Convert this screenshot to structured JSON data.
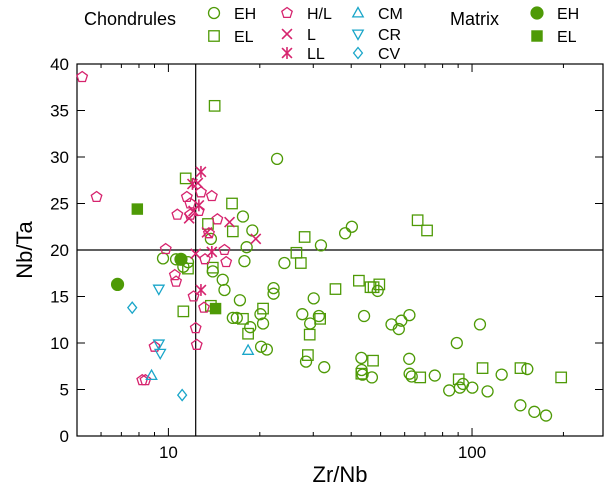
{
  "chart_data": {
    "type": "scatter",
    "xlabel": "Zr/Nb",
    "ylabel": "Nb/Ta",
    "xscale": "log",
    "xlim": [
      5,
      270
    ],
    "ylim": [
      0,
      40
    ],
    "x_ticks": [
      10,
      100
    ],
    "y_ticks": [
      0,
      5,
      10,
      15,
      20,
      25,
      30,
      35,
      40
    ],
    "reference_lines": {
      "x": 12.3,
      "y": 20
    },
    "legend": {
      "placement": "top",
      "group_chondrules": "Chondrules",
      "group_matrix": "Matrix"
    },
    "colors": {
      "green": "#4e9a06",
      "magenta": "#d6246e",
      "cyan": "#1aa6c9"
    },
    "series": [
      {
        "name": "EH",
        "group": "Chondrules",
        "marker": "circle-open",
        "color": "#4e9a06",
        "points": [
          [
            9.6,
            19.1
          ],
          [
            10.6,
            19.0
          ],
          [
            11.6,
            18.7
          ],
          [
            11.2,
            18.2
          ],
          [
            13.8,
            21.2
          ],
          [
            14.0,
            17.7
          ],
          [
            15.1,
            16.8
          ],
          [
            15.3,
            15.7
          ],
          [
            16.3,
            12.7
          ],
          [
            16.8,
            12.7
          ],
          [
            17.2,
            14.6
          ],
          [
            17.6,
            23.6
          ],
          [
            17.8,
            18.8
          ],
          [
            18.1,
            20.3
          ],
          [
            18.9,
            22.1
          ],
          [
            18.6,
            11.7
          ],
          [
            20.1,
            13.1
          ],
          [
            20.5,
            12.1
          ],
          [
            20.2,
            9.6
          ],
          [
            21.1,
            9.3
          ],
          [
            22.2,
            15.9
          ],
          [
            22.2,
            15.3
          ],
          [
            22.8,
            29.8
          ],
          [
            24.1,
            18.6
          ],
          [
            27.6,
            13.1
          ],
          [
            28.4,
            8.0
          ],
          [
            29.3,
            12.1
          ],
          [
            30.1,
            14.8
          ],
          [
            31.3,
            12.9
          ],
          [
            31.8,
            20.5
          ],
          [
            32.6,
            7.4
          ],
          [
            38.2,
            21.8
          ],
          [
            40.2,
            22.5
          ],
          [
            44.1,
            12.9
          ],
          [
            43.2,
            8.4
          ],
          [
            43.3,
            7.1
          ],
          [
            43.6,
            6.6
          ],
          [
            46.8,
            6.3
          ],
          [
            48.9,
            15.6
          ],
          [
            54.3,
            12.0
          ],
          [
            57.4,
            11.5
          ],
          [
            58.5,
            12.4
          ],
          [
            62.2,
            13.0
          ],
          [
            62.1,
            8.3
          ],
          [
            62.3,
            6.7
          ],
          [
            63.3,
            6.4
          ],
          [
            75.4,
            6.5
          ],
          [
            84.1,
            4.9
          ],
          [
            89.1,
            10.0
          ],
          [
            91.2,
            5.2
          ],
          [
            93.4,
            5.6
          ],
          [
            100.2,
            5.2
          ],
          [
            106.2,
            12.0
          ],
          [
            112.5,
            4.8
          ],
          [
            125.2,
            6.6
          ],
          [
            144.3,
            3.3
          ],
          [
            152.1,
            7.2
          ],
          [
            160.4,
            2.6
          ],
          [
            175.3,
            2.2
          ]
        ]
      },
      {
        "name": "EL",
        "group": "Chondrules",
        "marker": "square-open",
        "color": "#4e9a06",
        "points": [
          [
            11.4,
            27.7
          ],
          [
            11.6,
            18.0
          ],
          [
            11.2,
            13.4
          ],
          [
            13.5,
            22.8
          ],
          [
            13.8,
            14.0
          ],
          [
            14.0,
            18.1
          ],
          [
            14.2,
            35.5
          ],
          [
            16.2,
            25.0
          ],
          [
            16.3,
            22.0
          ],
          [
            17.6,
            12.6
          ],
          [
            18.3,
            11.0
          ],
          [
            20.5,
            13.7
          ],
          [
            26.4,
            19.7
          ],
          [
            27.3,
            18.6
          ],
          [
            28.1,
            21.4
          ],
          [
            28.8,
            8.7
          ],
          [
            29.2,
            10.9
          ],
          [
            31.6,
            12.6
          ],
          [
            35.5,
            15.8
          ],
          [
            42.4,
            16.7
          ],
          [
            43.2,
            6.7
          ],
          [
            46.3,
            16.0
          ],
          [
            47.2,
            8.1
          ],
          [
            47.4,
            16.0
          ],
          [
            49.5,
            16.3
          ],
          [
            66.2,
            23.2
          ],
          [
            67.5,
            6.3
          ],
          [
            71.1,
            22.1
          ],
          [
            90.4,
            6.1
          ],
          [
            108.3,
            7.3
          ],
          [
            144.4,
            7.3
          ],
          [
            196.6,
            6.3
          ]
        ]
      },
      {
        "name": "H/L",
        "group": "Chondrules",
        "marker": "pentagon-open",
        "color": "#d6246e",
        "points": [
          [
            5.2,
            38.6
          ],
          [
            5.8,
            25.7
          ],
          [
            8.2,
            6.0
          ],
          [
            8.4,
            6.0
          ],
          [
            9.0,
            9.6
          ],
          [
            9.8,
            20.1
          ],
          [
            10.5,
            17.3
          ],
          [
            10.6,
            16.6
          ],
          [
            10.7,
            23.8
          ],
          [
            11.5,
            25.7
          ],
          [
            11.8,
            23.8
          ],
          [
            11.8,
            25.0
          ],
          [
            12.1,
            15.0
          ],
          [
            12.3,
            11.6
          ],
          [
            12.4,
            9.8
          ],
          [
            12.6,
            24.2
          ],
          [
            12.8,
            26.2
          ],
          [
            13.1,
            13.8
          ],
          [
            13.2,
            19.0
          ],
          [
            13.6,
            21.8
          ],
          [
            13.9,
            25.8
          ],
          [
            14.5,
            23.3
          ],
          [
            15.3,
            20.0
          ],
          [
            15.5,
            18.7
          ]
        ]
      },
      {
        "name": "L",
        "group": "Chondrules",
        "marker": "x",
        "color": "#d6246e",
        "points": [
          [
            12.1,
            24.2
          ],
          [
            11.7,
            23.4
          ],
          [
            12.3,
            19.6
          ],
          [
            12.5,
            27.2
          ],
          [
            13.4,
            21.9
          ],
          [
            15.9,
            23.0
          ],
          [
            19.4,
            21.2
          ]
        ]
      },
      {
        "name": "LL",
        "group": "Chondrules",
        "marker": "asterisk",
        "color": "#d6246e",
        "points": [
          [
            12.0,
            27.1
          ],
          [
            12.6,
            24.8
          ],
          [
            12.8,
            28.4
          ],
          [
            12.8,
            15.7
          ],
          [
            13.9,
            19.8
          ]
        ]
      },
      {
        "name": "CM",
        "group": "Chondrules",
        "marker": "triangle-up-open",
        "color": "#1aa6c9",
        "points": [
          [
            8.8,
            6.5
          ],
          [
            18.3,
            9.2
          ]
        ]
      },
      {
        "name": "CR",
        "group": "Chondrules",
        "marker": "triangle-down-open",
        "color": "#1aa6c9",
        "points": [
          [
            9.3,
            15.8
          ],
          [
            9.3,
            9.9
          ],
          [
            9.4,
            8.9
          ]
        ]
      },
      {
        "name": "CV",
        "group": "Chondrules",
        "marker": "diamond-open",
        "color": "#1aa6c9",
        "points": [
          [
            7.6,
            13.8
          ],
          [
            11.1,
            4.4
          ]
        ]
      },
      {
        "name": "EH",
        "group": "Matrix",
        "marker": "circle-filled",
        "color": "#4e9a06",
        "points": [
          [
            6.8,
            16.3
          ],
          [
            11.0,
            19.0
          ]
        ]
      },
      {
        "name": "EL",
        "group": "Matrix",
        "marker": "square-filled",
        "color": "#4e9a06",
        "points": [
          [
            7.9,
            24.4
          ],
          [
            14.3,
            13.7
          ]
        ]
      }
    ]
  }
}
